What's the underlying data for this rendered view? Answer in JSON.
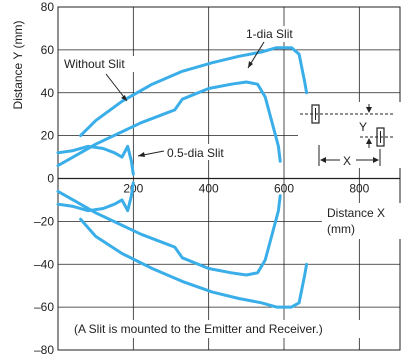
{
  "chart_data": {
    "type": "line",
    "ylabel": "Distance Y (mm)",
    "xlabel_lines": [
      "Distance X",
      "(mm)"
    ],
    "xlim": [
      0,
      900
    ],
    "ylim": [
      -80,
      80
    ],
    "x_ticks": [
      200,
      400,
      600,
      800
    ],
    "y_ticks": [
      80,
      60,
      40,
      20,
      0,
      -20,
      -40,
      -60,
      -80
    ],
    "grid": true,
    "series_color": "#3aaee8",
    "annotations": {
      "without_slit": "Without Slit",
      "one_dia_slit": "1-dia Slit",
      "half_dia_slit": "0.5-dia Slit",
      "diagram_y": "Y",
      "diagram_x": "X",
      "note": "(A Slit is mounted to the Emitter and Receiver.)"
    },
    "series": [
      {
        "key": "without_slit",
        "upper": [
          [
            60,
            20
          ],
          [
            100,
            27
          ],
          [
            170,
            36
          ],
          [
            250,
            44
          ],
          [
            330,
            50
          ],
          [
            410,
            54
          ],
          [
            480,
            57
          ],
          [
            540,
            59
          ],
          [
            580,
            61
          ],
          [
            620,
            61
          ],
          [
            640,
            58
          ],
          [
            655,
            45
          ],
          [
            660,
            40
          ]
        ],
        "lower": [
          [
            60,
            -19
          ],
          [
            100,
            -27
          ],
          [
            170,
            -35
          ],
          [
            250,
            -42
          ],
          [
            330,
            -48
          ],
          [
            410,
            -53
          ],
          [
            480,
            -56
          ],
          [
            540,
            -58
          ],
          [
            580,
            -60
          ],
          [
            620,
            -60
          ],
          [
            640,
            -58
          ],
          [
            655,
            -45
          ],
          [
            660,
            -40
          ]
        ]
      },
      {
        "key": "one_dia_slit",
        "upper": [
          [
            0,
            6
          ],
          [
            40,
            10
          ],
          [
            100,
            16
          ],
          [
            160,
            21
          ],
          [
            220,
            26
          ],
          [
            280,
            30
          ],
          [
            310,
            32
          ],
          [
            330,
            37
          ],
          [
            400,
            42
          ],
          [
            460,
            44
          ],
          [
            500,
            45
          ],
          [
            530,
            44
          ],
          [
            550,
            38
          ],
          [
            570,
            25
          ],
          [
            585,
            15
          ],
          [
            590,
            8
          ]
        ],
        "lower": [
          [
            0,
            -6
          ],
          [
            40,
            -10
          ],
          [
            100,
            -16
          ],
          [
            160,
            -21
          ],
          [
            220,
            -26
          ],
          [
            280,
            -30
          ],
          [
            310,
            -32
          ],
          [
            330,
            -37
          ],
          [
            400,
            -42
          ],
          [
            460,
            -44
          ],
          [
            500,
            -45
          ],
          [
            530,
            -44
          ],
          [
            550,
            -38
          ],
          [
            570,
            -25
          ],
          [
            585,
            -15
          ],
          [
            590,
            -8
          ]
        ]
      },
      {
        "key": "half_dia_slit",
        "upper": [
          [
            0,
            12
          ],
          [
            40,
            13
          ],
          [
            80,
            15
          ],
          [
            120,
            14
          ],
          [
            150,
            12
          ],
          [
            170,
            10
          ],
          [
            185,
            15
          ],
          [
            195,
            8
          ],
          [
            200,
            2
          ]
        ],
        "lower": [
          [
            0,
            -12
          ],
          [
            40,
            -13
          ],
          [
            80,
            -15
          ],
          [
            120,
            -14
          ],
          [
            150,
            -12
          ],
          [
            170,
            -10
          ],
          [
            185,
            -15
          ],
          [
            195,
            -8
          ],
          [
            200,
            -2
          ]
        ]
      }
    ]
  }
}
